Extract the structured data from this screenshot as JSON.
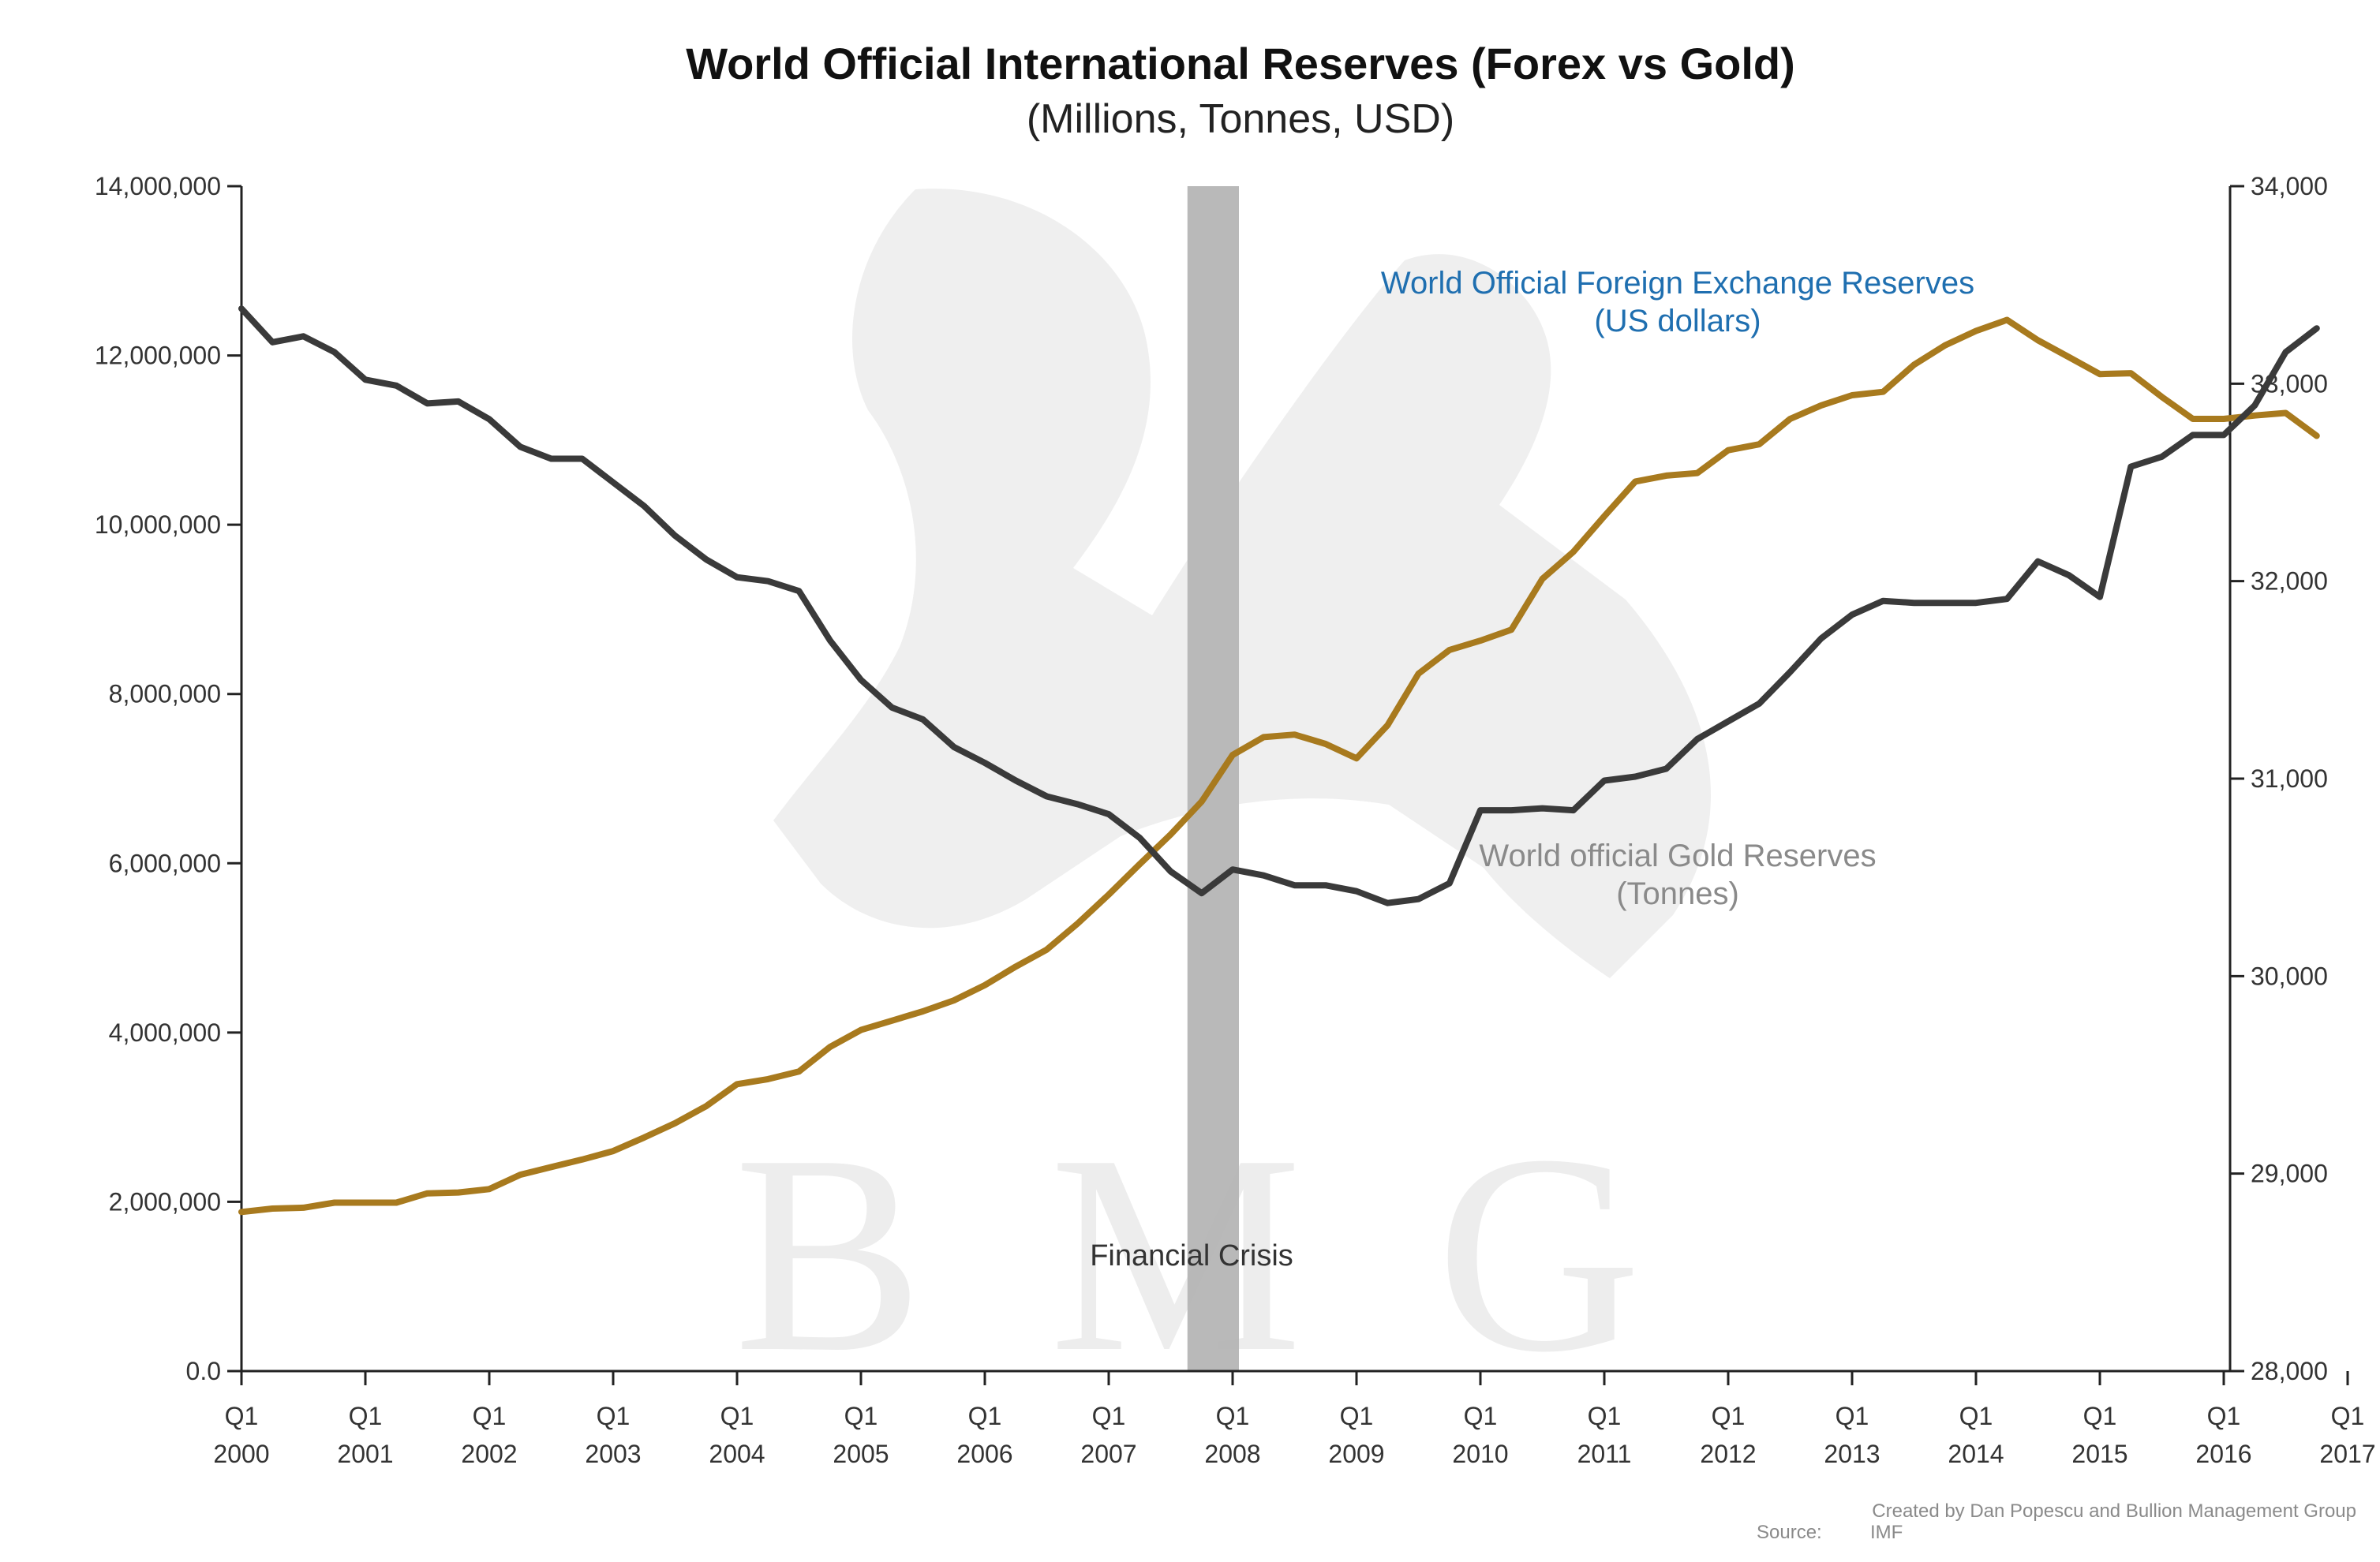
{
  "chart_data": {
    "type": "line",
    "title": "World Official International Reserves (Forex vs Gold)",
    "subtitle": "(Millions, Tonnes, USD)",
    "x_start_quarter": "Q1 2000",
    "x_tick_labels": [
      {
        "q": "Q1",
        "year": "2000"
      },
      {
        "q": "Q1",
        "year": "2001"
      },
      {
        "q": "Q1",
        "year": "2002"
      },
      {
        "q": "Q1",
        "year": "2003"
      },
      {
        "q": "Q1",
        "year": "2004"
      },
      {
        "q": "Q1",
        "year": "2005"
      },
      {
        "q": "Q1",
        "year": "2006"
      },
      {
        "q": "Q1",
        "year": "2007"
      },
      {
        "q": "Q1",
        "year": "2008"
      },
      {
        "q": "Q1",
        "year": "2009"
      },
      {
        "q": "Q1",
        "year": "2010"
      },
      {
        "q": "Q1",
        "year": "2011"
      },
      {
        "q": "Q1",
        "year": "2012"
      },
      {
        "q": "Q1",
        "year": "2013"
      },
      {
        "q": "Q1",
        "year": "2014"
      },
      {
        "q": "Q1",
        "year": "2015"
      },
      {
        "q": "Q1",
        "year": "2016"
      },
      {
        "q": "Q1",
        "year": "2017"
      }
    ],
    "y_left": {
      "ylim": [
        0,
        14000000
      ],
      "ticks": [
        0,
        2000000,
        4000000,
        6000000,
        8000000,
        10000000,
        12000000,
        14000000
      ],
      "tick_labels": [
        "0.0",
        "2,000,000",
        "4,000,000",
        "6,000,000",
        "8,000,000",
        "10,000,000",
        "12,000,000",
        "14,000,000"
      ]
    },
    "y_right": {
      "ylim": [
        28000,
        34000
      ],
      "ticks": [
        28000,
        29000,
        30000,
        31000,
        32000,
        33000,
        34000
      ],
      "tick_labels": [
        "28,000",
        "29,000",
        "30,000",
        "31,000",
        "32,000",
        "33,000",
        "34,000"
      ]
    },
    "shaded_band": {
      "label": "Financial Crisis",
      "x_from": "Q4 2007",
      "x_to": "Q1 2008"
    },
    "series": [
      {
        "name": "World Official Foreign Exchange Reserves (US dollars)",
        "axis": "left",
        "color": "#a87a1e",
        "values": [
          1880000,
          1920000,
          1930000,
          1990000,
          1990000,
          1990000,
          2100000,
          2110000,
          2150000,
          2320000,
          2410000,
          2500000,
          2600000,
          2760000,
          2930000,
          3130000,
          3390000,
          3450000,
          3540000,
          3830000,
          4030000,
          4140000,
          4250000,
          4380000,
          4560000,
          4780000,
          4980000,
          5290000,
          5630000,
          5990000,
          6340000,
          6730000,
          7280000,
          7490000,
          7520000,
          7410000,
          7240000,
          7630000,
          8240000,
          8520000,
          8630000,
          8760000,
          9360000,
          9680000,
          10100000,
          10510000,
          10580000,
          10610000,
          10880000,
          10950000,
          11250000,
          11410000,
          11530000,
          11570000,
          11890000,
          12120000,
          12290000,
          12420000,
          12180000,
          11980000,
          11780000,
          11790000,
          11510000,
          11250000,
          11250000,
          11290000,
          11320000,
          11050000
        ]
      },
      {
        "name": "World official Gold Reserves (Tonnes)",
        "axis": "right",
        "color": "#3a3a3a",
        "values": [
          33380,
          33210,
          33240,
          33160,
          33020,
          32990,
          32900,
          32910,
          32820,
          32680,
          32620,
          32620,
          32500,
          32380,
          32230,
          32110,
          32020,
          32000,
          31950,
          31700,
          31500,
          31360,
          31300,
          31160,
          31080,
          30990,
          30910,
          30870,
          30820,
          30700,
          30530,
          30420,
          30540,
          30510,
          30460,
          30460,
          30430,
          30370,
          30390,
          30470,
          30840,
          30840,
          30850,
          30840,
          30990,
          31010,
          31050,
          31200,
          31290,
          31380,
          31540,
          31710,
          31830,
          31900,
          31890,
          31890,
          31890,
          31910,
          32100,
          32030,
          31920,
          32580,
          32630,
          32740,
          32740,
          32890,
          33160,
          33280
        ]
      }
    ],
    "annotations": {
      "fx_label_line1": "World Official Foreign Exchange Reserves",
      "fx_label_line2": "(US dollars)",
      "gold_label_line1": "World official Gold Reserves",
      "gold_label_line2": "(Tonnes)",
      "crisis_label": "Financial Crisis"
    },
    "credit_line1": "Created by Dan Popescu and Bullion Management Group",
    "credit_source_label": "Source:",
    "credit_source_value": "IMF",
    "watermark_text": [
      "B",
      "M",
      "G"
    ],
    "grid": false,
    "legend": "none"
  }
}
